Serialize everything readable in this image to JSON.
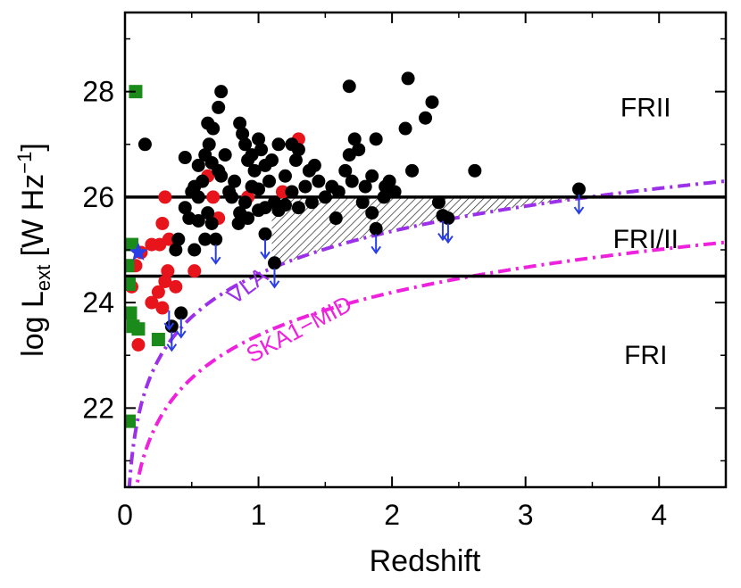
{
  "chart_data": {
    "type": "scatter",
    "title": "",
    "xlabel": "Redshift",
    "ylabel_main": "log L",
    "ylabel_sub": "ext",
    "ylabel_unit": " [W Hz",
    "ylabel_sup": "−1",
    "ylabel_close": "]",
    "xlim": [
      0,
      4.5
    ],
    "ylim": [
      20.5,
      29.5
    ],
    "xticks": [
      0,
      1,
      2,
      3,
      4
    ],
    "yticks": [
      22,
      24,
      26,
      28
    ],
    "xtick_labels": [
      "0",
      "1",
      "2",
      "3",
      "4"
    ],
    "ytick_labels": [
      "22",
      "24",
      "26",
      "28"
    ],
    "thresholds": [
      26.0,
      24.5
    ],
    "regions": [
      {
        "label": "FRII",
        "x": 3.9,
        "y": 27.7
      },
      {
        "label": "FRI/II",
        "x": 3.9,
        "y": 25.2
      },
      {
        "label": "FRI",
        "x": 3.9,
        "y": 23.0
      }
    ],
    "curves": [
      {
        "name": "VLA",
        "color": "#9b30e8",
        "offset": 24.54,
        "slope": 2.7,
        "label_x": 0.82,
        "label_y": 23.95,
        "label_rot": -37
      },
      {
        "name": "SKA1−MID",
        "color": "#ee22dd",
        "offset": 23.38,
        "slope": 2.7,
        "label_x": 0.95,
        "label_y": 22.85,
        "label_rot": -28
      }
    ],
    "hatch_region": {
      "from_x": 1.1,
      "to_x": 4.5,
      "y_top": 26.0
    },
    "colors": {
      "black": "#000000",
      "red": "#e8141c",
      "green": "#1a8a1a",
      "blue": "#2a3ee6",
      "purple": "#9b30e8",
      "magenta": "#ee22dd"
    },
    "series": [
      {
        "name": "black points",
        "marker": "circle",
        "color": "#000000",
        "points": [
          [
            0.15,
            27.0
          ],
          [
            0.62,
            27.4
          ],
          [
            0.66,
            27.3
          ],
          [
            0.7,
            27.7
          ],
          [
            0.72,
            28.0
          ],
          [
            0.63,
            27.0
          ],
          [
            0.6,
            26.8
          ],
          [
            0.55,
            26.6
          ],
          [
            0.45,
            26.75
          ],
          [
            0.65,
            26.65
          ],
          [
            0.7,
            26.5
          ],
          [
            0.75,
            26.8
          ],
          [
            0.72,
            26.4
          ],
          [
            0.58,
            26.3
          ],
          [
            0.52,
            26.2
          ],
          [
            0.5,
            26.1
          ],
          [
            0.55,
            26.0
          ],
          [
            0.45,
            25.8
          ],
          [
            0.48,
            25.6
          ],
          [
            0.55,
            25.55
          ],
          [
            0.62,
            25.7
          ],
          [
            0.65,
            25.5
          ],
          [
            0.6,
            25.2
          ],
          [
            0.52,
            25.0
          ],
          [
            0.4,
            25.2
          ],
          [
            0.38,
            25.0
          ],
          [
            0.78,
            26.1
          ],
          [
            0.82,
            26.3
          ],
          [
            0.8,
            26.0
          ],
          [
            0.86,
            27.4
          ],
          [
            0.88,
            27.2
          ],
          [
            0.9,
            27.0
          ],
          [
            0.92,
            26.7
          ],
          [
            0.95,
            26.8
          ],
          [
            0.97,
            26.5
          ],
          [
            1.0,
            27.1
          ],
          [
            1.02,
            26.9
          ],
          [
            1.05,
            26.6
          ],
          [
            1.08,
            26.3
          ],
          [
            1.0,
            26.15
          ],
          [
            0.95,
            26.2
          ],
          [
            0.9,
            25.9
          ],
          [
            0.86,
            25.7
          ],
          [
            0.85,
            25.5
          ],
          [
            0.92,
            25.6
          ],
          [
            1.0,
            25.75
          ],
          [
            1.05,
            25.8
          ],
          [
            1.12,
            25.9
          ],
          [
            1.15,
            25.75
          ],
          [
            1.2,
            25.85
          ],
          [
            1.25,
            26.1
          ],
          [
            1.2,
            26.4
          ],
          [
            1.28,
            26.7
          ],
          [
            1.3,
            26.9
          ],
          [
            1.25,
            27.0
          ],
          [
            1.15,
            27.0
          ],
          [
            1.1,
            26.7
          ],
          [
            1.35,
            26.2
          ],
          [
            1.38,
            26.5
          ],
          [
            1.42,
            26.6
          ],
          [
            1.45,
            26.3
          ],
          [
            1.4,
            25.9
          ],
          [
            1.5,
            26.0
          ],
          [
            1.55,
            26.2
          ],
          [
            1.6,
            26.1
          ],
          [
            1.58,
            25.6
          ],
          [
            1.65,
            26.5
          ],
          [
            1.68,
            26.8
          ],
          [
            1.7,
            26.3
          ],
          [
            1.72,
            27.1
          ],
          [
            1.75,
            26.9
          ],
          [
            1.8,
            26.2
          ],
          [
            1.85,
            26.4
          ],
          [
            1.78,
            25.9
          ],
          [
            1.85,
            25.7
          ],
          [
            1.88,
            27.1
          ],
          [
            1.95,
            26.2
          ],
          [
            1.98,
            26.3
          ],
          [
            1.94,
            26.0
          ],
          [
            2.02,
            26.1
          ],
          [
            2.1,
            27.3
          ],
          [
            2.15,
            26.5
          ],
          [
            2.25,
            27.5
          ],
          [
            2.3,
            27.8
          ],
          [
            2.35,
            25.9
          ],
          [
            2.38,
            25.65
          ],
          [
            2.42,
            25.6
          ],
          [
            2.62,
            26.5
          ],
          [
            1.68,
            28.1
          ],
          [
            2.12,
            28.25
          ],
          [
            1.3,
            25.8
          ],
          [
            1.88,
            25.4
          ],
          [
            1.05,
            25.3
          ],
          [
            1.12,
            24.75
          ],
          [
            0.68,
            25.2
          ],
          [
            0.42,
            23.8
          ],
          [
            0.35,
            23.55
          ],
          [
            3.4,
            26.15
          ]
        ]
      },
      {
        "name": "red points",
        "marker": "circle",
        "color": "#e8141c",
        "points": [
          [
            0.3,
            26.0
          ],
          [
            0.28,
            25.5
          ],
          [
            0.2,
            25.1
          ],
          [
            0.26,
            25.1
          ],
          [
            0.33,
            25.2
          ],
          [
            0.12,
            24.95
          ],
          [
            0.08,
            24.7
          ],
          [
            0.05,
            24.3
          ],
          [
            0.2,
            24.0
          ],
          [
            0.25,
            24.2
          ],
          [
            0.28,
            23.9
          ],
          [
            0.32,
            24.6
          ],
          [
            0.38,
            24.3
          ],
          [
            0.3,
            24.4
          ],
          [
            0.1,
            23.2
          ],
          [
            0.52,
            24.6
          ],
          [
            0.62,
            26.4
          ],
          [
            0.66,
            26.0
          ],
          [
            0.7,
            25.6
          ],
          [
            0.92,
            26.0
          ],
          [
            1.18,
            26.1
          ],
          [
            1.3,
            27.1
          ]
        ]
      },
      {
        "name": "green squares",
        "marker": "square",
        "color": "#1a8a1a",
        "points": [
          [
            0.08,
            28.0
          ],
          [
            0.05,
            25.1
          ],
          [
            0.02,
            24.7
          ],
          [
            0.03,
            24.35
          ],
          [
            0.04,
            23.8
          ],
          [
            0.06,
            23.55
          ],
          [
            0.1,
            23.5
          ],
          [
            0.25,
            23.3
          ],
          [
            0.03,
            21.75
          ]
        ]
      },
      {
        "name": "blue star",
        "marker": "star",
        "color": "#2a3ee6",
        "points": [
          [
            0.1,
            24.95
          ]
        ]
      },
      {
        "name": "upper limits",
        "marker": "arrow",
        "color": "#2a3ee6",
        "points": [
          [
            0.68,
            25.2
          ],
          [
            1.05,
            25.3
          ],
          [
            1.12,
            24.75
          ],
          [
            1.88,
            25.4
          ],
          [
            2.38,
            25.65
          ],
          [
            2.42,
            25.6
          ],
          [
            3.4,
            26.15
          ],
          [
            0.42,
            23.8
          ],
          [
            0.35,
            23.55
          ],
          [
            0.33,
            23.95
          ]
        ]
      }
    ]
  }
}
